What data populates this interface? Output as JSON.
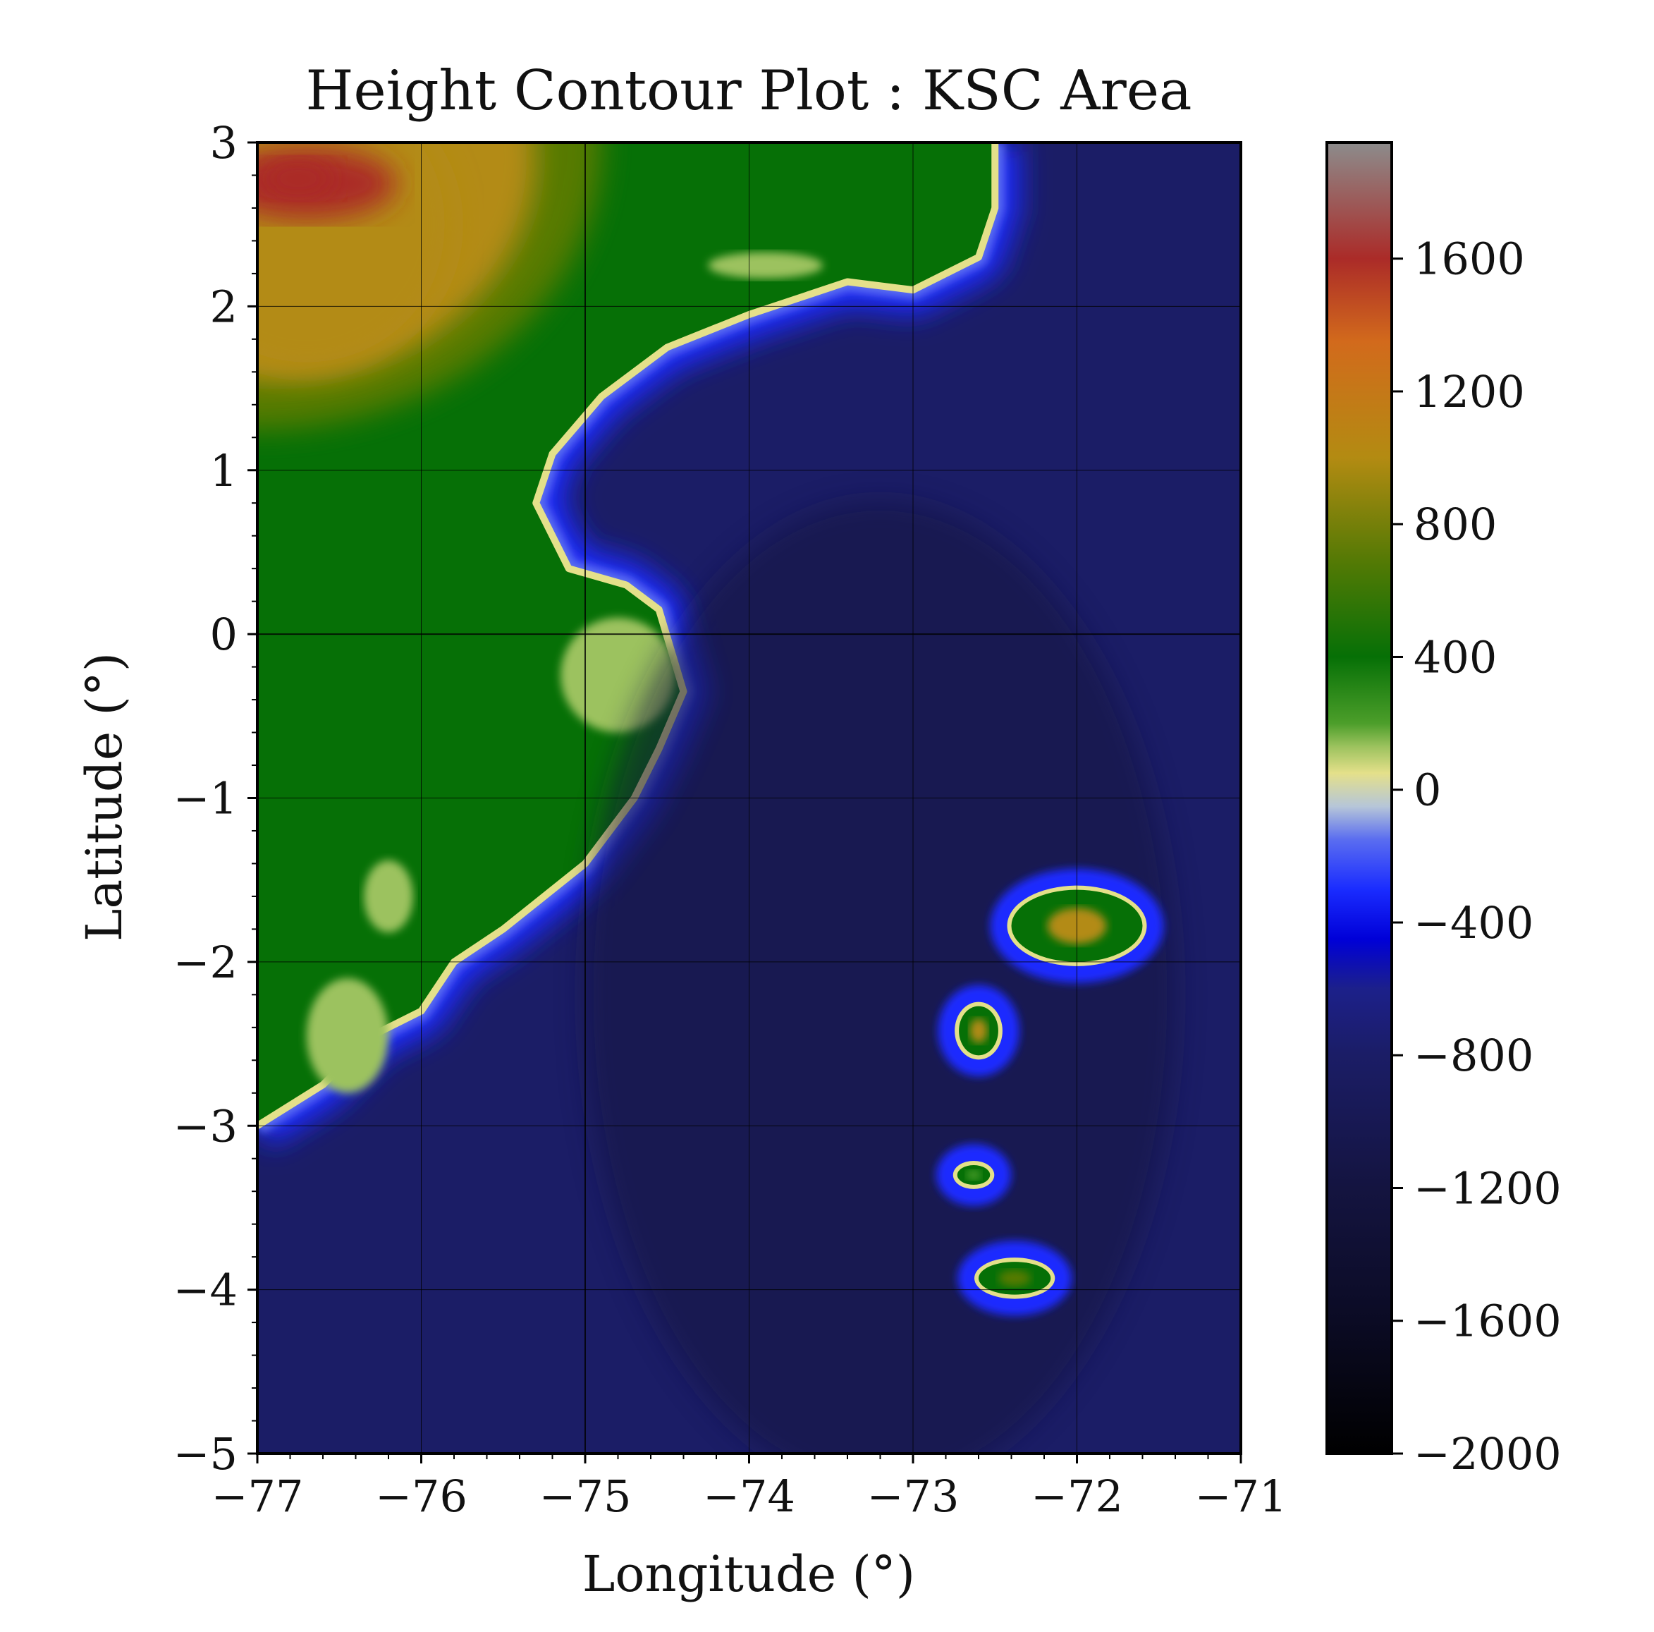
{
  "chart_data": {
    "type": "heatmap",
    "title": "Height Contour Plot : KSC Area",
    "xlabel": "Longitude (°)",
    "ylabel": "Latitude (°)",
    "xlim": [
      -77,
      -71
    ],
    "ylim": [
      -5,
      3
    ],
    "x_ticks": [
      -77,
      -76,
      -75,
      -74,
      -73,
      -72,
      -71
    ],
    "x_tick_labels": [
      "−77",
      "−76",
      "−75",
      "−74",
      "−73",
      "−72",
      "−71"
    ],
    "y_ticks": [
      -5,
      -4,
      -3,
      -2,
      -1,
      0,
      1,
      2,
      3
    ],
    "y_tick_labels": [
      "−5",
      "−4",
      "−3",
      "−2",
      "−1",
      "0",
      "1",
      "2",
      "3"
    ],
    "grid": true,
    "colorbar": {
      "range": [
        -2000,
        1950
      ],
      "ticks": [
        -2000,
        -1600,
        -1200,
        -800,
        -400,
        0,
        400,
        800,
        1200,
        1600
      ],
      "tick_labels": [
        "−2000",
        "−1600",
        "−1200",
        "−800",
        "−400",
        "0",
        "400",
        "800",
        "1200",
        "1600"
      ],
      "color_stops": [
        {
          "value": -2000,
          "color": "#000000"
        },
        {
          "value": -1600,
          "color": "#0b0b24"
        },
        {
          "value": -1200,
          "color": "#141440"
        },
        {
          "value": -800,
          "color": "#1b1d66"
        },
        {
          "value": -600,
          "color": "#1c208a"
        },
        {
          "value": -450,
          "color": "#0000d8"
        },
        {
          "value": -300,
          "color": "#1a2cff"
        },
        {
          "value": -150,
          "color": "#5a6df0"
        },
        {
          "value": -50,
          "color": "#b6c6d8"
        },
        {
          "value": 50,
          "color": "#e4e08a"
        },
        {
          "value": 130,
          "color": "#9cc25e"
        },
        {
          "value": 200,
          "color": "#4c9e2a"
        },
        {
          "value": 400,
          "color": "#067006"
        },
        {
          "value": 700,
          "color": "#577a05"
        },
        {
          "value": 1000,
          "color": "#b38b12"
        },
        {
          "value": 1350,
          "color": "#d26a1c"
        },
        {
          "value": 1600,
          "color": "#ab2b28"
        },
        {
          "value": 1950,
          "color": "#8c8c8c"
        }
      ]
    },
    "features": {
      "coastline_lonlat": [
        [
          -77,
          -3.0
        ],
        [
          -76.6,
          -2.75
        ],
        [
          -76.3,
          -2.45
        ],
        [
          -76.0,
          -2.3
        ],
        [
          -75.8,
          -2.0
        ],
        [
          -75.5,
          -1.8
        ],
        [
          -75.0,
          -1.4
        ],
        [
          -74.7,
          -1.0
        ],
        [
          -74.55,
          -0.7
        ],
        [
          -74.4,
          -0.35
        ],
        [
          -74.55,
          0.15
        ],
        [
          -74.75,
          0.3
        ],
        [
          -75.1,
          0.4
        ],
        [
          -75.3,
          0.8
        ],
        [
          -75.2,
          1.1
        ],
        [
          -74.9,
          1.45
        ],
        [
          -74.5,
          1.75
        ],
        [
          -74.0,
          1.95
        ],
        [
          -73.4,
          2.15
        ],
        [
          -73.0,
          2.1
        ],
        [
          -72.6,
          2.3
        ],
        [
          -72.5,
          2.6
        ],
        [
          -72.5,
          3.0
        ]
      ],
      "islands": [
        {
          "lon": -72.0,
          "lat": -1.78,
          "rx": 0.4,
          "ry": 0.22,
          "peak": 1100
        },
        {
          "lon": -72.6,
          "lat": -2.42,
          "rx": 0.12,
          "ry": 0.15,
          "peak": 1000
        },
        {
          "lon": -72.63,
          "lat": -3.3,
          "rx": 0.1,
          "ry": 0.06,
          "peak": 350
        },
        {
          "lon": -72.38,
          "lat": -3.93,
          "rx": 0.22,
          "ry": 0.1,
          "peak": 900
        }
      ]
    }
  }
}
